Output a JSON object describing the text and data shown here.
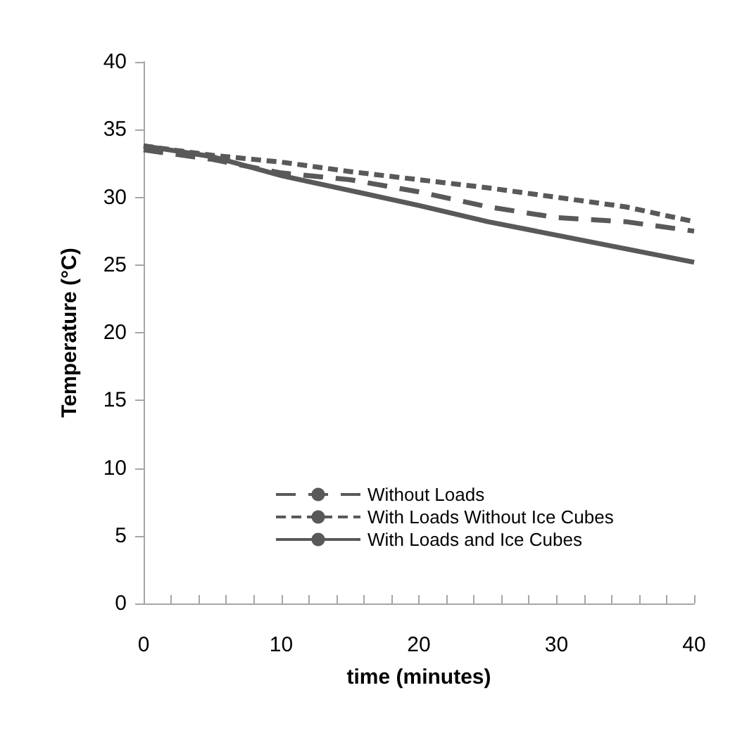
{
  "chart_data": {
    "type": "line",
    "xlabel": "time (minutes)",
    "ylabel": "Temperature (°C)",
    "x": [
      0,
      5,
      10,
      15,
      20,
      25,
      30,
      35,
      40
    ],
    "series": [
      {
        "name": "Without Loads",
        "color": "#595959",
        "line_style": "dashed",
        "values": [
          33.5,
          32.8,
          31.8,
          31.3,
          30.4,
          29.3,
          28.5,
          28.2,
          27.5
        ]
      },
      {
        "name": "With Loads Without Ice Cubes",
        "color": "#595959",
        "line_style": "dotted",
        "values": [
          33.8,
          33.1,
          32.6,
          31.9,
          31.3,
          30.7,
          30.0,
          29.3,
          28.2
        ]
      },
      {
        "name": "With Loads and Ice Cubes",
        "color": "#595959",
        "line_style": "solid",
        "values": [
          33.8,
          33.0,
          31.6,
          30.5,
          29.4,
          28.2,
          27.2,
          26.2,
          25.2
        ]
      }
    ],
    "xlim": [
      0,
      40
    ],
    "xticks": [
      0,
      {
        "value": 2,
        "label": null
      },
      {
        "value": 4,
        "label": null
      },
      {
        "value": 6,
        "label": null
      },
      {
        "value": 8,
        "label": null
      },
      10,
      {
        "value": 12,
        "label": null
      },
      {
        "value": 14,
        "label": null
      },
      {
        "value": 16,
        "label": null
      },
      {
        "value": 18,
        "label": null
      },
      20,
      {
        "value": 22,
        "label": null
      },
      {
        "value": 24,
        "label": null
      },
      {
        "value": 26,
        "label": null
      },
      {
        "value": 28,
        "label": null
      },
      30,
      {
        "value": 32,
        "label": null
      },
      {
        "value": 34,
        "label": null
      },
      {
        "value": 36,
        "label": null
      },
      {
        "value": 38,
        "label": null
      },
      40
    ],
    "ylim": [
      0,
      40
    ],
    "yticks": [
      0,
      5,
      10,
      15,
      20,
      25,
      30,
      35,
      40
    ],
    "grid": false,
    "legend": "bottom",
    "marker": "none"
  }
}
